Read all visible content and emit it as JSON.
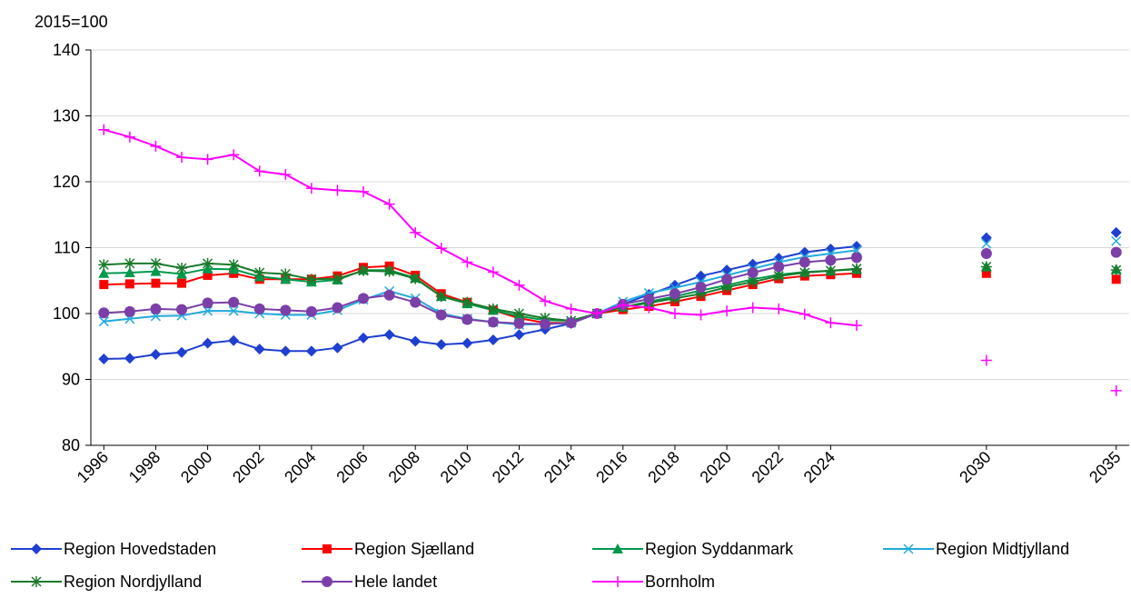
{
  "chart_data": {
    "type": "line",
    "y_label": "2015=100",
    "x": [
      1996,
      1997,
      1998,
      1999,
      2000,
      2001,
      2002,
      2003,
      2004,
      2005,
      2006,
      2007,
      2008,
      2009,
      2010,
      2011,
      2012,
      2013,
      2014,
      2015,
      2016,
      2017,
      2018,
      2019,
      2020,
      2021,
      2022,
      2023,
      2024,
      2025,
      2026,
      2027,
      2028,
      2029,
      2030,
      2031,
      2032,
      2033,
      2034,
      2035
    ],
    "xlim": [
      1995.5,
      2035.5
    ],
    "xticks": [
      1996,
      1998,
      2000,
      2002,
      2004,
      2006,
      2008,
      2010,
      2012,
      2014,
      2016,
      2018,
      2020,
      2022,
      2024,
      2030,
      2035
    ],
    "ylim": [
      80,
      140
    ],
    "yticks": [
      80,
      90,
      100,
      110,
      120,
      130,
      140
    ],
    "grid": true,
    "series": [
      {
        "name": "Region Hovedstaden",
        "color": "#1f3fd0",
        "marker": "diamond",
        "values": [
          93.1,
          93.2,
          93.8,
          94.1,
          95.5,
          95.9,
          94.6,
          94.3,
          94.3,
          94.8,
          96.3,
          96.8,
          95.8,
          95.3,
          95.5,
          96.0,
          96.8,
          97.6,
          98.5,
          100,
          101.4,
          102.9,
          104.3,
          105.7,
          106.6,
          107.5,
          108.4,
          109.3,
          109.8,
          110.2,
          null,
          null,
          null,
          null,
          111.5,
          null,
          null,
          null,
          null,
          112.3
        ]
      },
      {
        "name": "Region Sjælland",
        "color": "#ff0000",
        "marker": "square",
        "values": [
          104.4,
          104.5,
          104.6,
          104.6,
          105.8,
          106.1,
          105.2,
          105.2,
          105.2,
          105.7,
          107.0,
          107.2,
          105.8,
          103.0,
          101.7,
          100.5,
          99.3,
          98.6,
          98.6,
          100,
          100.6,
          101.1,
          101.8,
          102.6,
          103.5,
          104.4,
          105.3,
          105.7,
          105.9,
          106.1,
          null,
          null,
          null,
          null,
          106.1,
          null,
          null,
          null,
          null,
          105.2
        ]
      },
      {
        "name": "Region Syddanmark",
        "color": "#00994c",
        "marker": "triangle",
        "values": [
          106.1,
          106.2,
          106.4,
          106.0,
          106.8,
          106.7,
          105.6,
          105.2,
          104.8,
          105.1,
          106.6,
          106.6,
          105.4,
          102.6,
          101.5,
          100.5,
          99.6,
          99.0,
          98.9,
          100,
          101.0,
          101.8,
          102.6,
          103.5,
          104.3,
          105.2,
          105.9,
          106.3,
          106.5,
          106.7,
          null,
          null,
          null,
          null,
          107.1,
          null,
          null,
          null,
          null,
          106.7
        ]
      },
      {
        "name": "Region Midtjylland",
        "color": "#22aadd",
        "marker": "x",
        "values": [
          98.8,
          99.2,
          99.6,
          99.7,
          100.4,
          100.4,
          100.0,
          99.8,
          99.8,
          100.5,
          102.1,
          103.4,
          102.3,
          100.0,
          99.2,
          98.7,
          98.3,
          98.4,
          98.6,
          100,
          101.8,
          103.1,
          103.9,
          104.8,
          105.8,
          106.8,
          107.8,
          108.6,
          109.1,
          109.6,
          null,
          null,
          null,
          null,
          110.6,
          null,
          null,
          null,
          null,
          111.0
        ]
      },
      {
        "name": "Region Nordjylland",
        "color": "#1a7a2a",
        "marker": "star",
        "values": [
          107.4,
          107.6,
          107.6,
          106.9,
          107.6,
          107.4,
          106.2,
          106.0,
          105.2,
          105.3,
          106.5,
          106.4,
          105.3,
          102.6,
          101.7,
          100.7,
          100.0,
          99.3,
          98.9,
          100,
          101.0,
          101.6,
          102.3,
          103.0,
          104.0,
          104.8,
          105.7,
          106.2,
          106.5,
          106.8,
          null,
          null,
          null,
          null,
          107.1,
          null,
          null,
          null,
          null,
          106.6
        ]
      },
      {
        "name": "Hele landet",
        "color": "#7b3fa8",
        "marker": "circle",
        "values": [
          100.1,
          100.3,
          100.7,
          100.6,
          101.6,
          101.7,
          100.7,
          100.5,
          100.3,
          100.9,
          102.3,
          102.8,
          101.7,
          99.8,
          99.1,
          98.7,
          98.5,
          98.4,
          98.6,
          100,
          101.4,
          102.2,
          103.0,
          104.0,
          105.2,
          106.2,
          107.1,
          107.8,
          108.1,
          108.5,
          null,
          null,
          null,
          null,
          109.1,
          null,
          null,
          null,
          null,
          109.3
        ]
      },
      {
        "name": "Bornholm",
        "color": "#ff00ff",
        "marker": "plus",
        "values": [
          127.9,
          126.8,
          125.4,
          123.7,
          123.4,
          124.1,
          121.6,
          121.1,
          119.0,
          118.7,
          118.5,
          116.6,
          112.3,
          109.9,
          107.8,
          106.3,
          104.3,
          101.9,
          100.7,
          100,
          101.3,
          100.9,
          100.0,
          99.8,
          100.4,
          100.9,
          100.7,
          99.9,
          98.6,
          98.2,
          null,
          null,
          null,
          null,
          92.9,
          null,
          null,
          null,
          null,
          88.3
        ]
      }
    ]
  }
}
